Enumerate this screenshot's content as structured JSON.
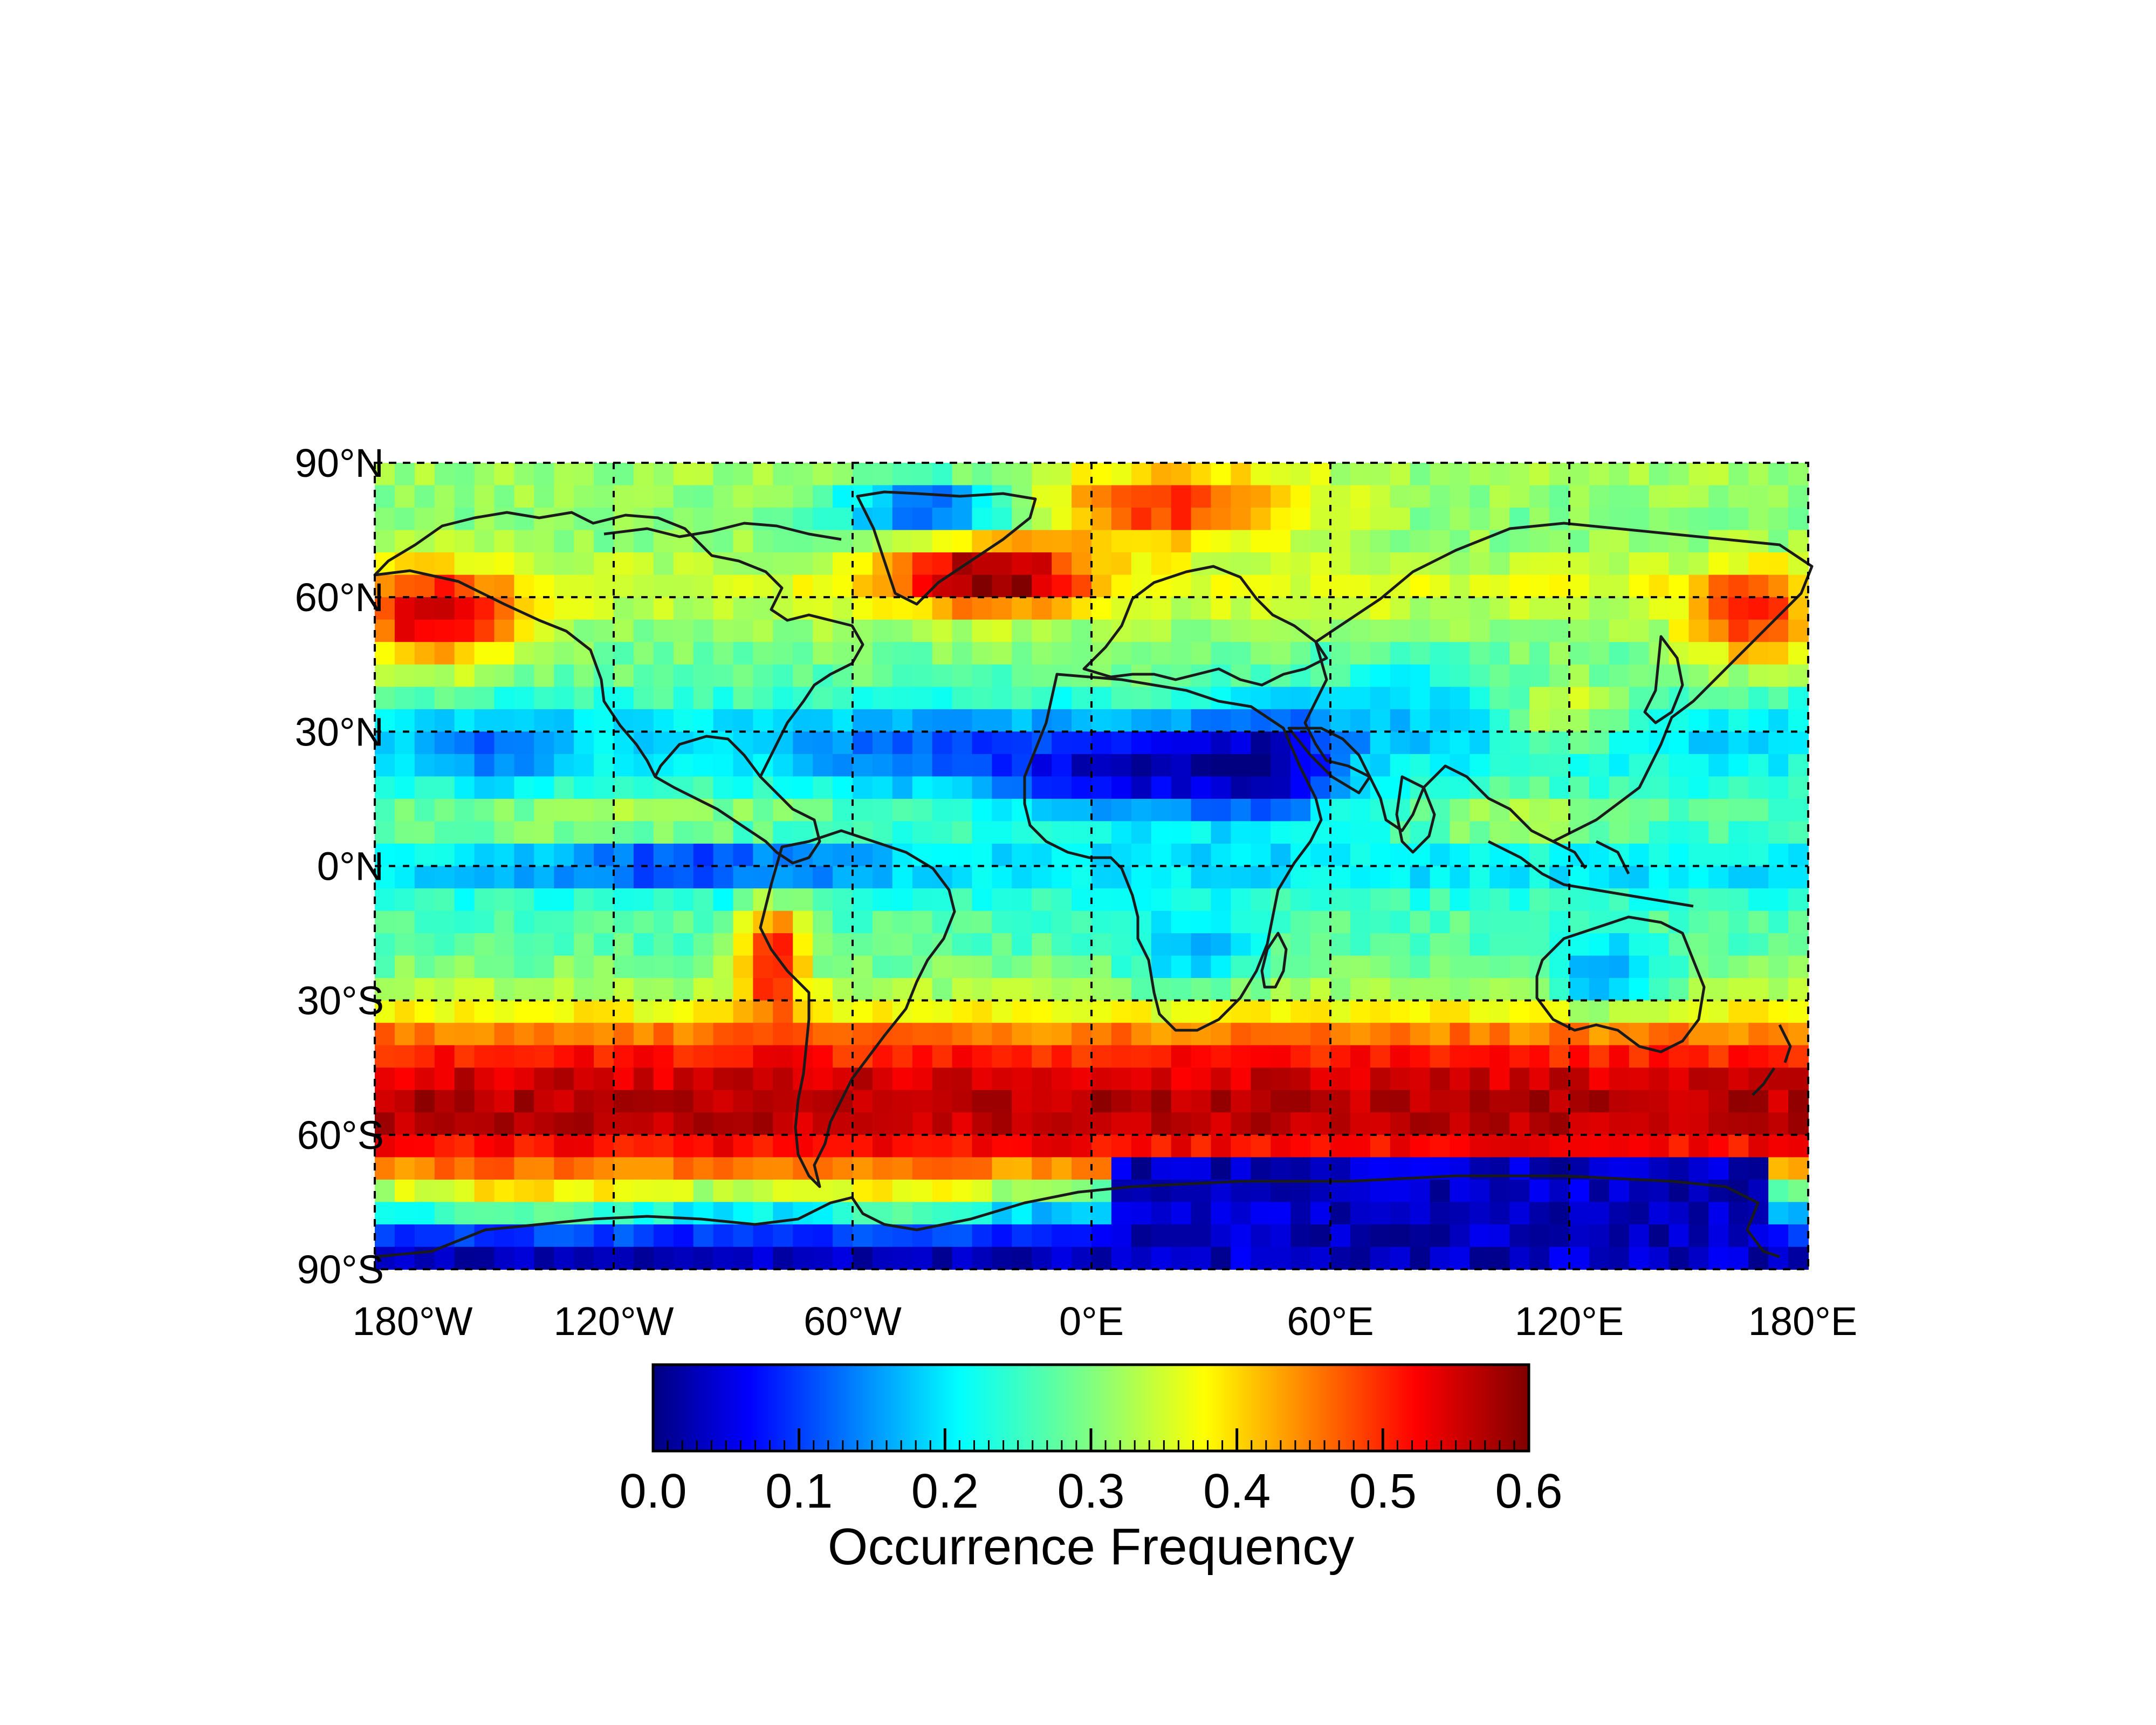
{
  "map": {
    "projection": "equirectangular",
    "lat_range": [
      -90,
      90
    ],
    "lon_range": [
      -180,
      180
    ],
    "grid_lines": "dotted",
    "cell_size_deg": 5,
    "lat_labels": [
      "90°N",
      "60°N",
      "30°N",
      "0°N",
      "30°S",
      "60°S",
      "90°S"
    ],
    "lon_labels": [
      "180°W",
      "120°W",
      "60°W",
      "0°E",
      "60°E",
      "120°E",
      "180°E"
    ],
    "coastlines": true
  },
  "colorbar": {
    "colormap": "jet",
    "range": [
      0.0,
      0.6
    ],
    "tick_labels": [
      "0.0",
      "0.1",
      "0.2",
      "0.3",
      "0.4",
      "0.5",
      "0.6"
    ],
    "title": "Occurrence Frequency"
  }
}
